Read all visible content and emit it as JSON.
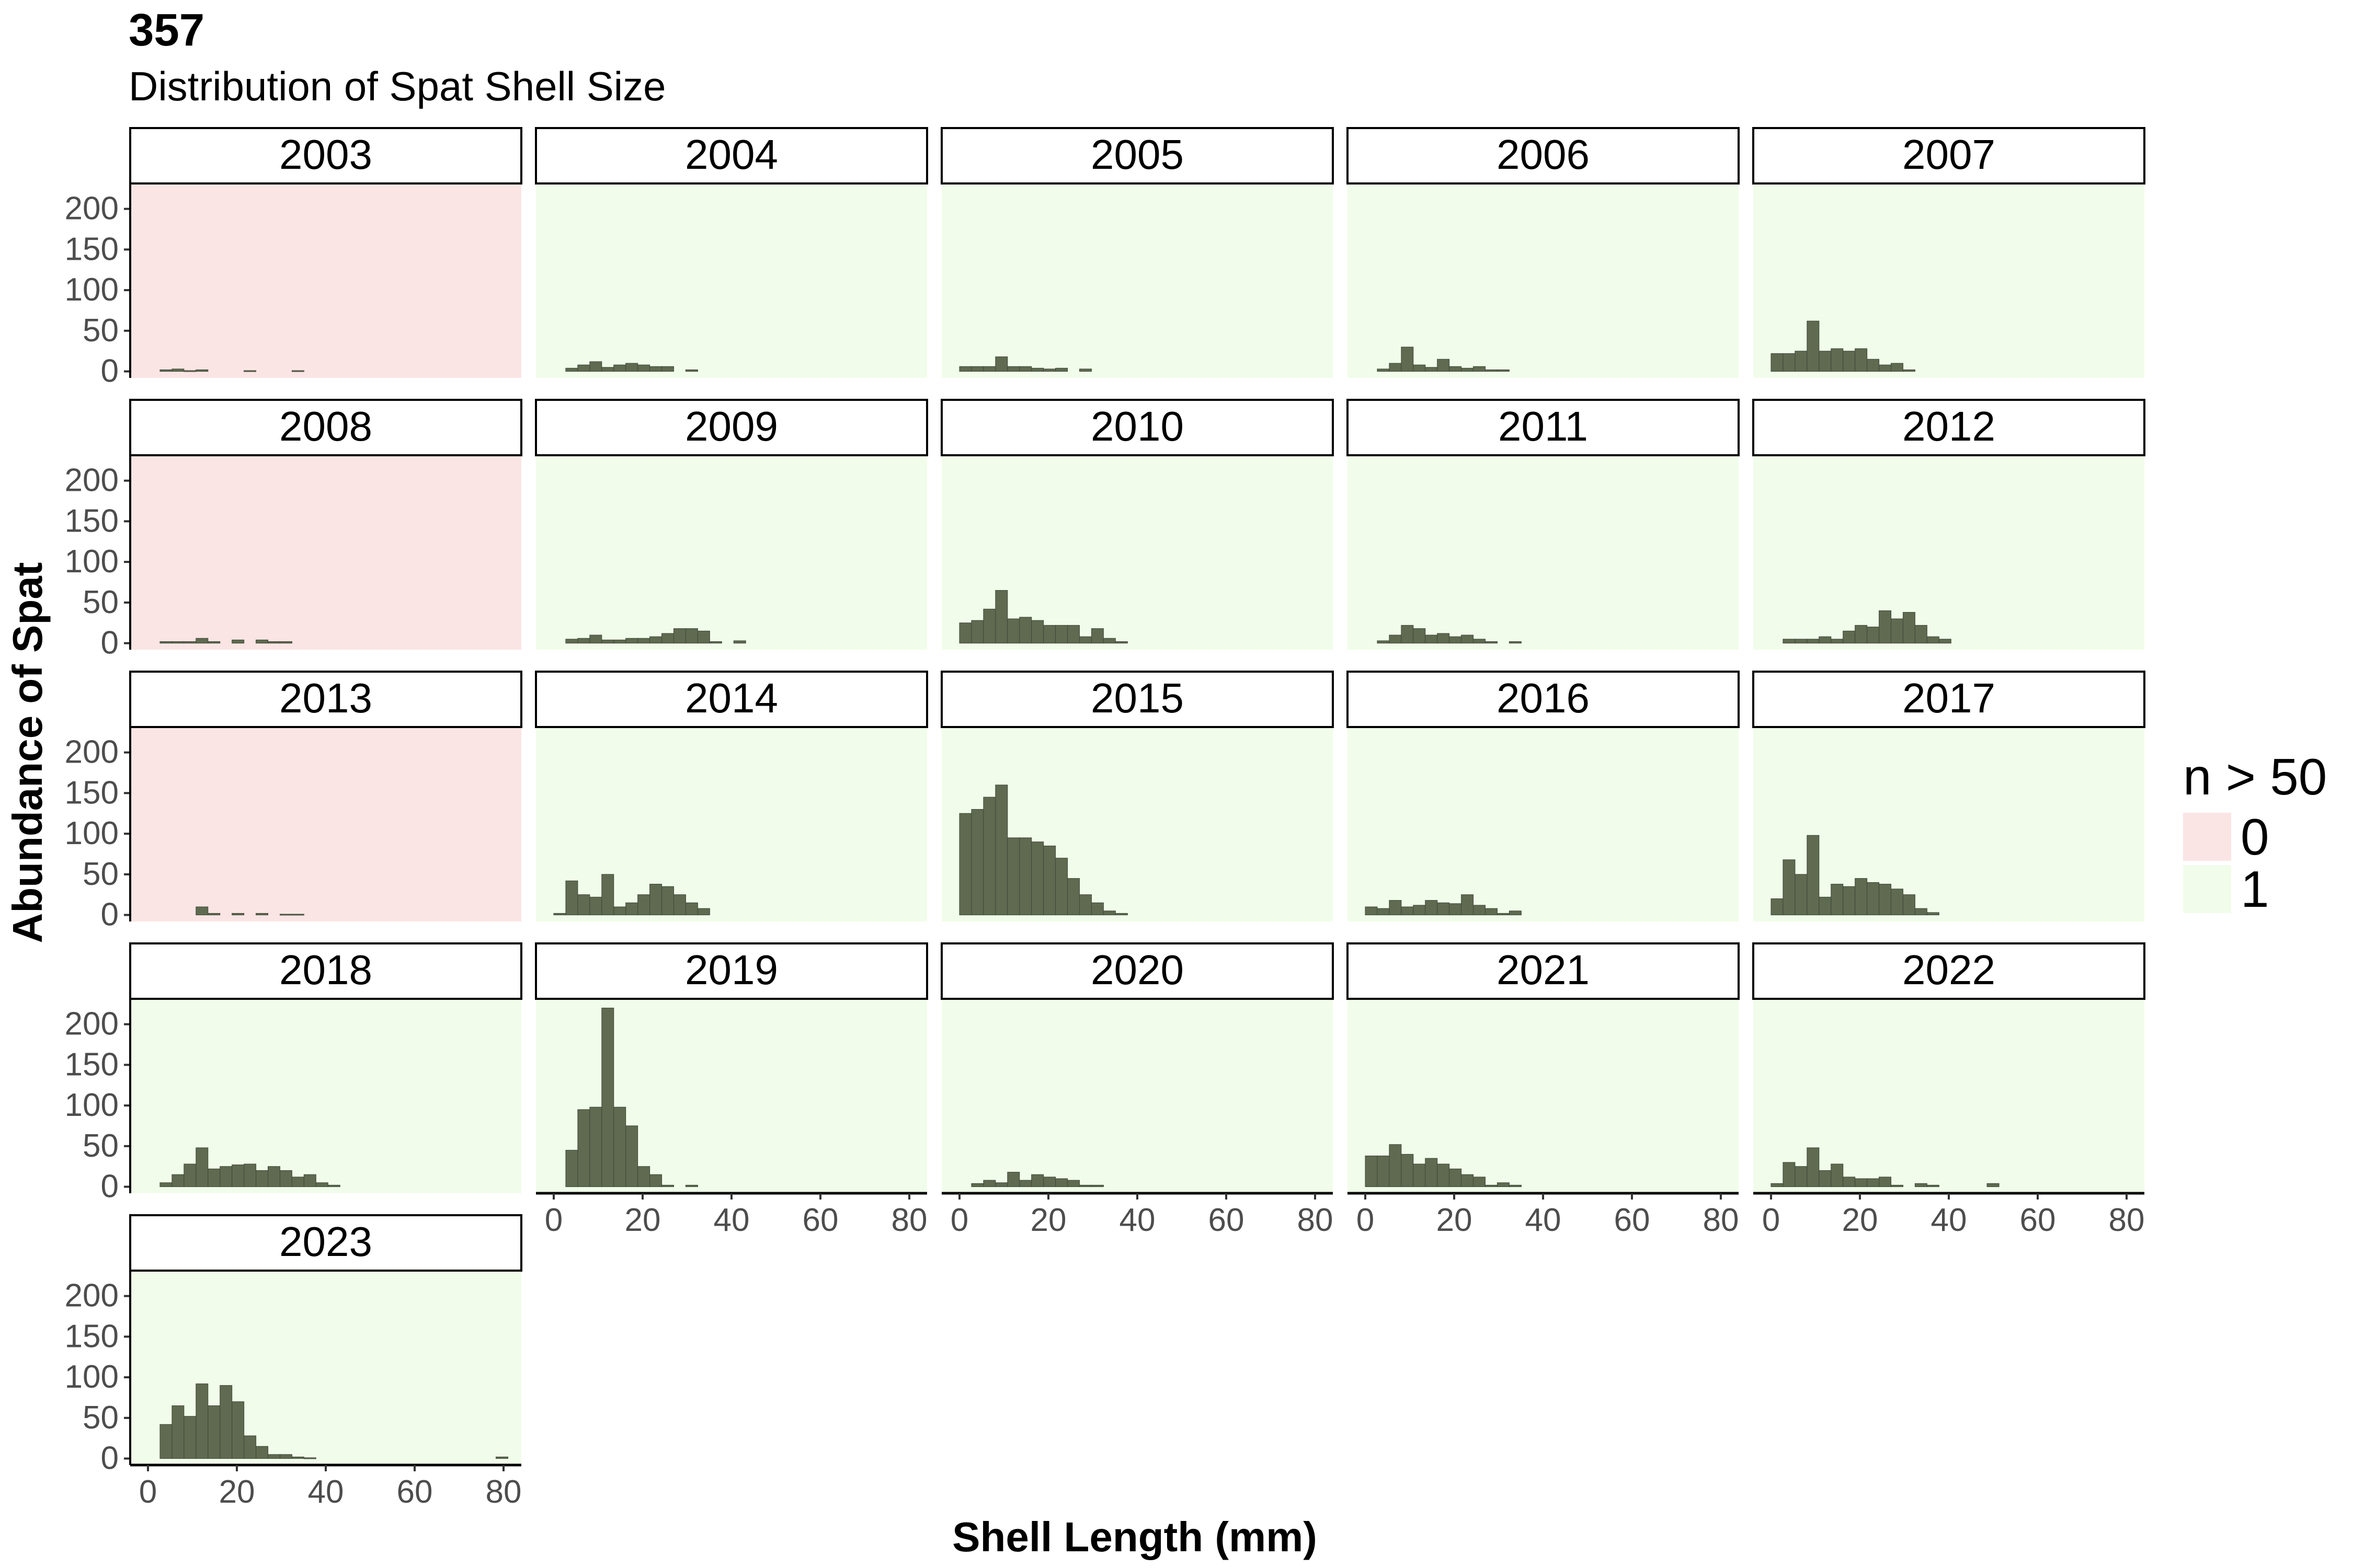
{
  "title": "357",
  "subtitle": "Distribution of Spat Shell Size",
  "chart_data": {
    "type": "bar",
    "subtype": "faceted histogram",
    "title": "357",
    "subtitle": "Distribution of Spat Shell Size",
    "xlabel": "Shell Length (mm)",
    "ylabel": "Abundance of Spat",
    "xlim": [
      -4,
      84
    ],
    "ylim": [
      -8,
      230
    ],
    "x_ticks": [
      "0",
      "20",
      "40",
      "60",
      "80"
    ],
    "y_ticks": [
      "0",
      "50",
      "100",
      "150",
      "200"
    ],
    "bin_width": 2.7,
    "bin_start": 0,
    "bar_color": "#5f6a50",
    "legend": {
      "title": "n > 50",
      "position": "right",
      "entries": [
        {
          "label": "0",
          "color": "#fbe5e4"
        },
        {
          "label": "1",
          "color": "#f1fdea"
        }
      ]
    },
    "panels": [
      {
        "year": "2003",
        "n_gt_50": "0",
        "values": [
          0,
          2,
          3,
          1,
          2,
          0,
          0,
          0,
          1,
          0,
          0,
          0,
          1,
          0,
          0,
          0
        ]
      },
      {
        "year": "2004",
        "values": [
          0,
          4,
          8,
          12,
          5,
          8,
          10,
          8,
          6,
          6,
          0,
          2,
          0,
          0,
          0,
          0
        ]
      },
      {
        "year": "2005",
        "values": [
          6,
          6,
          6,
          18,
          6,
          6,
          4,
          3,
          4,
          0,
          3,
          0,
          0,
          0,
          0,
          0
        ]
      },
      {
        "year": "2006",
        "values": [
          0,
          3,
          10,
          30,
          8,
          5,
          15,
          6,
          4,
          6,
          2,
          2,
          0,
          0,
          0,
          0
        ]
      },
      {
        "year": "2007",
        "values": [
          22,
          22,
          25,
          62,
          25,
          28,
          25,
          28,
          15,
          8,
          10,
          2,
          0,
          0,
          0,
          0
        ]
      },
      {
        "year": "2008",
        "n_gt_50": "0",
        "values": [
          0,
          2,
          2,
          2,
          6,
          2,
          0,
          4,
          0,
          4,
          2,
          2,
          0,
          0,
          0,
          0
        ]
      },
      {
        "year": "2009",
        "values": [
          0,
          5,
          6,
          10,
          4,
          4,
          6,
          6,
          8,
          12,
          18,
          18,
          15,
          2,
          0,
          3
        ]
      },
      {
        "year": "2010",
        "values": [
          25,
          28,
          42,
          65,
          30,
          32,
          28,
          22,
          22,
          22,
          8,
          18,
          6,
          2,
          0,
          0
        ]
      },
      {
        "year": "2011",
        "values": [
          0,
          3,
          10,
          22,
          18,
          10,
          12,
          8,
          10,
          5,
          2,
          0,
          2,
          0,
          0,
          0
        ]
      },
      {
        "year": "2012",
        "values": [
          0,
          5,
          5,
          5,
          8,
          5,
          15,
          22,
          20,
          40,
          30,
          38,
          22,
          8,
          5,
          0
        ]
      },
      {
        "year": "2013",
        "n_gt_50": "0",
        "values": [
          0,
          0,
          0,
          0,
          10,
          2,
          0,
          2,
          0,
          2,
          0,
          1,
          1,
          0,
          0,
          0
        ]
      },
      {
        "year": "2014",
        "values": [
          2,
          42,
          25,
          22,
          50,
          10,
          15,
          25,
          38,
          35,
          25,
          15,
          8,
          0,
          0,
          0
        ]
      },
      {
        "year": "2015",
        "values": [
          125,
          130,
          145,
          160,
          95,
          95,
          90,
          85,
          70,
          45,
          25,
          15,
          5,
          2,
          0,
          0
        ]
      },
      {
        "year": "2016",
        "values": [
          10,
          8,
          18,
          10,
          12,
          18,
          15,
          14,
          25,
          12,
          8,
          2,
          5,
          0,
          0,
          0
        ]
      },
      {
        "year": "2017",
        "values": [
          20,
          68,
          50,
          98,
          22,
          38,
          35,
          45,
          40,
          38,
          32,
          25,
          8,
          3,
          0,
          0
        ]
      },
      {
        "year": "2018",
        "values": [
          0,
          5,
          15,
          28,
          48,
          22,
          25,
          27,
          28,
          20,
          25,
          20,
          12,
          15,
          5,
          2
        ]
      },
      {
        "year": "2019",
        "values": [
          0,
          45,
          95,
          98,
          220,
          98,
          75,
          25,
          15,
          2,
          0,
          2,
          0,
          0,
          0,
          0
        ]
      },
      {
        "year": "2020",
        "values": [
          0,
          4,
          8,
          5,
          18,
          8,
          15,
          12,
          10,
          8,
          2,
          2,
          0,
          0,
          0,
          0
        ]
      },
      {
        "year": "2021",
        "values": [
          38,
          38,
          52,
          40,
          28,
          35,
          28,
          22,
          15,
          12,
          2,
          5,
          2,
          0,
          0,
          0
        ]
      },
      {
        "year": "2022",
        "values": [
          4,
          30,
          25,
          48,
          20,
          28,
          12,
          10,
          10,
          12,
          2,
          0,
          4,
          2,
          0,
          0,
          0,
          0,
          4
        ]
      },
      {
        "year": "2023",
        "values": [
          0,
          42,
          65,
          52,
          92,
          65,
          90,
          70,
          28,
          15,
          5,
          5,
          2,
          1,
          0,
          0,
          0,
          0,
          0,
          0,
          0,
          0,
          0,
          0,
          0,
          0,
          0,
          0,
          0,
          2
        ]
      }
    ]
  }
}
